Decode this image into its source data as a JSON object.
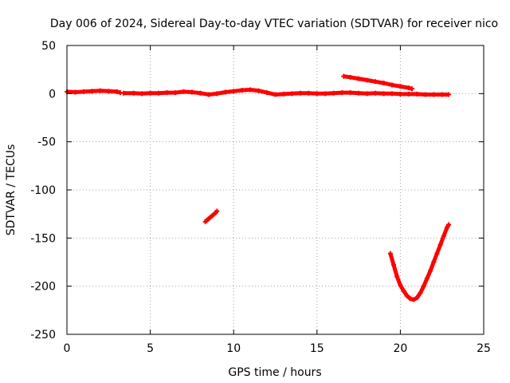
{
  "chart_data": {
    "type": "line",
    "title": "Day 006 of 2024, Sidereal Day-to-day VTEC variation (SDTVAR) for receiver nico",
    "xlabel": "GPS time / hours",
    "ylabel": "SDTVAR / TECUs",
    "xlim": [
      0,
      25
    ],
    "ylim": [
      -250,
      50
    ],
    "xticks": [
      0,
      5,
      10,
      15,
      20,
      25
    ],
    "yticks": [
      50,
      0,
      -50,
      -100,
      -150,
      -200,
      -250
    ],
    "grid": true,
    "legend": "none",
    "series": [
      {
        "color": "#ff0000",
        "x": [
          0,
          0.5,
          1,
          1.5,
          2,
          2.5,
          3,
          3.2
        ],
        "y": [
          2,
          1.5,
          2,
          2.5,
          3,
          2.5,
          2,
          1
        ]
      },
      {
        "color": "#ff0000",
        "x": [
          3.4,
          4,
          4.5,
          5,
          5.5,
          6,
          6.5,
          7,
          7.5,
          8,
          8.5,
          9,
          9.5,
          10,
          10.5,
          11,
          11.5,
          12,
          12.5,
          13,
          13.5,
          14,
          14.5,
          15,
          15.5,
          16,
          16.5,
          17,
          17.5,
          18,
          18.5,
          19,
          19.5,
          20,
          20.5,
          21,
          21.5,
          22,
          22.5,
          22.9
        ],
        "y": [
          0.5,
          0.5,
          0,
          0.5,
          0.5,
          1,
          1,
          2,
          1.5,
          0.5,
          -1,
          0,
          1.5,
          2.5,
          3.5,
          4,
          3,
          1,
          -1,
          -0.5,
          0,
          0.5,
          0.5,
          0,
          0,
          0.5,
          1,
          1,
          0.5,
          0,
          0.5,
          0,
          0,
          -0.5,
          -0.5,
          -0.5,
          -1,
          -1,
          -1,
          -1
        ]
      },
      {
        "color": "#ff0000",
        "x": [
          16.6,
          17,
          17.5,
          18,
          18.5,
          19,
          19.5,
          20,
          20.5,
          20.7
        ],
        "y": [
          18,
          17,
          15.5,
          14,
          12.5,
          11,
          9,
          7.5,
          6,
          5
        ]
      },
      {
        "color": "#ff0000",
        "x": [
          8.3,
          8.5,
          8.7,
          8.9,
          9.0
        ],
        "y": [
          -133,
          -130,
          -127,
          -124,
          -122
        ]
      },
      {
        "color": "#ff0000",
        "x": [
          19.4,
          19.6,
          19.8,
          20.0,
          20.2,
          20.4,
          20.6,
          20.8,
          21.0,
          21.2,
          21.4,
          21.6,
          21.8,
          22.0,
          22.2,
          22.4,
          22.6,
          22.8,
          22.9
        ],
        "y": [
          -166,
          -178,
          -190,
          -199,
          -205,
          -210,
          -213,
          -214,
          -212,
          -207,
          -200,
          -192,
          -184,
          -175,
          -166,
          -157,
          -148,
          -139,
          -136
        ]
      }
    ]
  }
}
